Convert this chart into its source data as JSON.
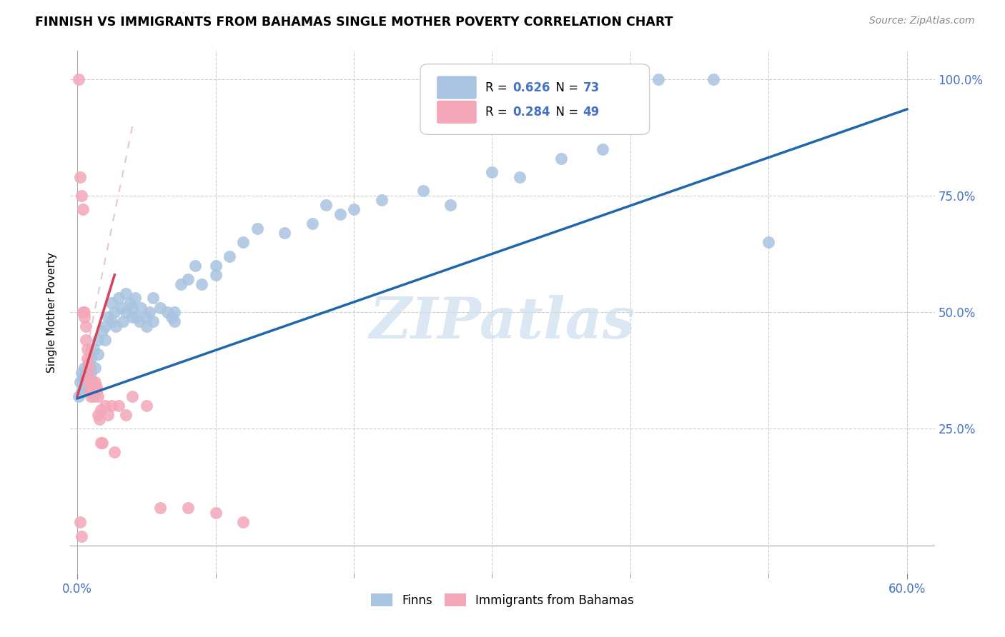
{
  "title": "FINNISH VS IMMIGRANTS FROM BAHAMAS SINGLE MOTHER POVERTY CORRELATION CHART",
  "source": "Source: ZipAtlas.com",
  "xlim": [
    0,
    0.6
  ],
  "ylim": [
    0,
    1.0
  ],
  "xlabel_major_ticks": [
    0.0,
    0.6
  ],
  "xlabel_major_labels": [
    "0.0%",
    "60.0%"
  ],
  "xlabel_minor_ticks": [
    0.1,
    0.2,
    0.3,
    0.4,
    0.5
  ],
  "ylabel_ticks": [
    0.25,
    0.5,
    0.75,
    1.0
  ],
  "ylabel_labels": [
    "25.0%",
    "50.0%",
    "75.0%",
    "100.0%"
  ],
  "ylabel_label": "Single Mother Poverty",
  "legend_blue_label": "Finns",
  "legend_pink_label": "Immigrants from Bahamas",
  "R_blue": 0.626,
  "N_blue": 73,
  "R_pink": 0.284,
  "N_pink": 49,
  "blue_scatter_color": "#a8c4e0",
  "pink_scatter_color": "#f4a7b9",
  "blue_line_color": "#2166ac",
  "pink_line_color": "#d6425a",
  "pink_dash_color": "#d8a0b0",
  "watermark_color": "#ccdff0",
  "watermark": "ZIPatlas",
  "blue_line": [
    [
      0.0,
      0.315
    ],
    [
      0.6,
      0.935
    ]
  ],
  "pink_line": [
    [
      0.0,
      0.32
    ],
    [
      0.027,
      0.58
    ]
  ],
  "blue_scatter": [
    [
      0.001,
      0.32
    ],
    [
      0.002,
      0.35
    ],
    [
      0.003,
      0.33
    ],
    [
      0.003,
      0.37
    ],
    [
      0.004,
      0.36
    ],
    [
      0.005,
      0.34
    ],
    [
      0.005,
      0.38
    ],
    [
      0.006,
      0.35
    ],
    [
      0.006,
      0.37
    ],
    [
      0.007,
      0.36
    ],
    [
      0.007,
      0.34
    ],
    [
      0.008,
      0.39
    ],
    [
      0.009,
      0.38
    ],
    [
      0.01,
      0.37
    ],
    [
      0.01,
      0.4
    ],
    [
      0.012,
      0.42
    ],
    [
      0.013,
      0.38
    ],
    [
      0.015,
      0.44
    ],
    [
      0.015,
      0.41
    ],
    [
      0.018,
      0.46
    ],
    [
      0.02,
      0.44
    ],
    [
      0.02,
      0.47
    ],
    [
      0.022,
      0.49
    ],
    [
      0.025,
      0.52
    ],
    [
      0.025,
      0.48
    ],
    [
      0.027,
      0.5
    ],
    [
      0.028,
      0.47
    ],
    [
      0.03,
      0.53
    ],
    [
      0.032,
      0.51
    ],
    [
      0.033,
      0.48
    ],
    [
      0.035,
      0.54
    ],
    [
      0.035,
      0.5
    ],
    [
      0.038,
      0.52
    ],
    [
      0.04,
      0.49
    ],
    [
      0.04,
      0.51
    ],
    [
      0.042,
      0.53
    ],
    [
      0.043,
      0.49
    ],
    [
      0.045,
      0.48
    ],
    [
      0.046,
      0.51
    ],
    [
      0.05,
      0.47
    ],
    [
      0.05,
      0.49
    ],
    [
      0.052,
      0.5
    ],
    [
      0.055,
      0.53
    ],
    [
      0.055,
      0.48
    ],
    [
      0.06,
      0.51
    ],
    [
      0.065,
      0.5
    ],
    [
      0.068,
      0.49
    ],
    [
      0.07,
      0.5
    ],
    [
      0.07,
      0.48
    ],
    [
      0.075,
      0.56
    ],
    [
      0.08,
      0.57
    ],
    [
      0.085,
      0.6
    ],
    [
      0.09,
      0.56
    ],
    [
      0.1,
      0.58
    ],
    [
      0.1,
      0.6
    ],
    [
      0.11,
      0.62
    ],
    [
      0.12,
      0.65
    ],
    [
      0.13,
      0.68
    ],
    [
      0.15,
      0.67
    ],
    [
      0.17,
      0.69
    ],
    [
      0.18,
      0.73
    ],
    [
      0.19,
      0.71
    ],
    [
      0.2,
      0.72
    ],
    [
      0.22,
      0.74
    ],
    [
      0.25,
      0.76
    ],
    [
      0.27,
      0.73
    ],
    [
      0.3,
      0.8
    ],
    [
      0.32,
      0.79
    ],
    [
      0.35,
      0.83
    ],
    [
      0.38,
      0.85
    ],
    [
      0.42,
      1.0
    ],
    [
      0.46,
      1.0
    ],
    [
      0.5,
      0.65
    ]
  ],
  "pink_scatter": [
    [
      0.001,
      1.0
    ],
    [
      0.002,
      0.79
    ],
    [
      0.003,
      0.75
    ],
    [
      0.004,
      0.72
    ],
    [
      0.004,
      0.5
    ],
    [
      0.005,
      0.5
    ],
    [
      0.005,
      0.49
    ],
    [
      0.006,
      0.47
    ],
    [
      0.006,
      0.44
    ],
    [
      0.007,
      0.42
    ],
    [
      0.007,
      0.4
    ],
    [
      0.008,
      0.38
    ],
    [
      0.008,
      0.36
    ],
    [
      0.009,
      0.35
    ],
    [
      0.009,
      0.33
    ],
    [
      0.01,
      0.35
    ],
    [
      0.01,
      0.34
    ],
    [
      0.01,
      0.33
    ],
    [
      0.01,
      0.32
    ],
    [
      0.011,
      0.35
    ],
    [
      0.011,
      0.34
    ],
    [
      0.011,
      0.33
    ],
    [
      0.012,
      0.34
    ],
    [
      0.012,
      0.33
    ],
    [
      0.012,
      0.32
    ],
    [
      0.013,
      0.35
    ],
    [
      0.013,
      0.34
    ],
    [
      0.014,
      0.33
    ],
    [
      0.014,
      0.34
    ],
    [
      0.015,
      0.28
    ],
    [
      0.015,
      0.32
    ],
    [
      0.016,
      0.27
    ],
    [
      0.017,
      0.22
    ],
    [
      0.017,
      0.29
    ],
    [
      0.018,
      0.22
    ],
    [
      0.02,
      0.3
    ],
    [
      0.022,
      0.28
    ],
    [
      0.025,
      0.3
    ],
    [
      0.027,
      0.2
    ],
    [
      0.03,
      0.3
    ],
    [
      0.035,
      0.28
    ],
    [
      0.04,
      0.32
    ],
    [
      0.05,
      0.3
    ],
    [
      0.06,
      0.08
    ],
    [
      0.08,
      0.08
    ],
    [
      0.1,
      0.07
    ],
    [
      0.12,
      0.05
    ],
    [
      0.002,
      0.05
    ],
    [
      0.003,
      0.02
    ]
  ]
}
